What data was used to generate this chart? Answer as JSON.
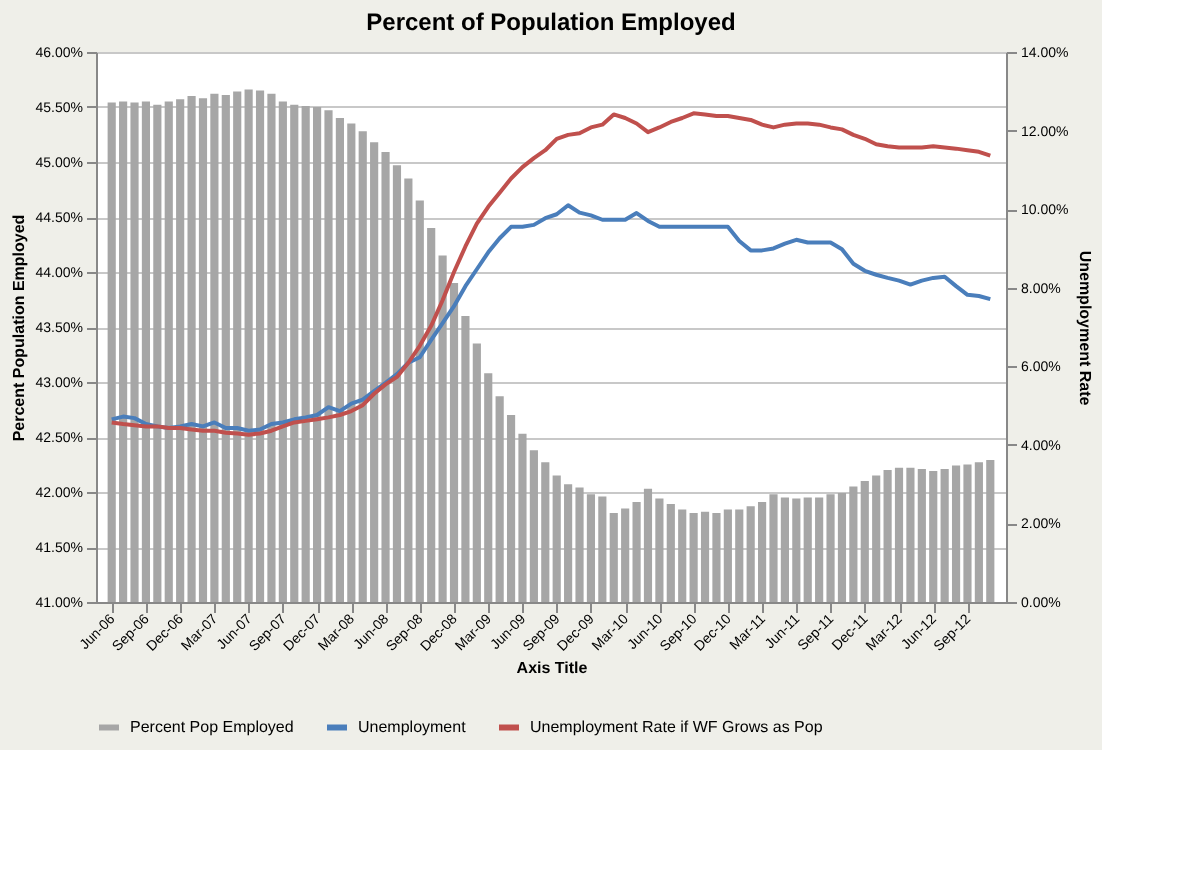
{
  "chart_data": {
    "type": "bar",
    "title": "Percent of Population Employed",
    "xlabel": "Axis Title",
    "ylabel": "Percent Population Employed",
    "y2label": "Unemployment Rate",
    "categories": [
      "Jun-06",
      null,
      null,
      "Sep-06",
      null,
      null,
      "Dec-06",
      null,
      null,
      "Mar-07",
      null,
      null,
      "Jun-07",
      null,
      null,
      "Sep-07",
      null,
      null,
      "Dec-07",
      null,
      null,
      "Mar-08",
      null,
      null,
      "Jun-08",
      null,
      null,
      "Sep-08",
      null,
      null,
      "Dec-08",
      null,
      null,
      "Mar-09",
      null,
      null,
      "Jun-09",
      null,
      null,
      "Sep-09",
      null,
      null,
      "Dec-09",
      null,
      null,
      "Mar-10",
      null,
      null,
      "Jun-10",
      null,
      null,
      "Sep-10",
      null,
      null,
      "Dec-10",
      null,
      null,
      "Mar-11",
      null,
      null,
      "Jun-11",
      null,
      null,
      "Sep-11",
      null,
      null,
      "Dec-11",
      null,
      null,
      "Mar-12",
      null,
      null,
      "Jun-12",
      null,
      null,
      "Sep-12",
      null,
      null
    ],
    "series": [
      {
        "name": "Percent Pop Employed",
        "color": "#a6a6a6",
        "values": [
          45.54,
          45.55,
          45.54,
          45.55,
          45.52,
          45.55,
          45.57,
          45.6,
          45.58,
          45.62,
          45.61,
          45.64,
          45.66,
          45.65,
          45.62,
          45.55,
          45.52,
          45.51,
          45.5,
          45.47,
          45.4,
          45.35,
          45.28,
          45.18,
          45.09,
          44.97,
          44.85,
          44.65,
          44.4,
          44.15,
          43.9,
          43.6,
          43.35,
          43.08,
          42.87,
          42.7,
          42.53,
          42.38,
          42.27,
          42.15,
          42.07,
          42.04,
          41.98,
          41.96,
          41.81,
          41.85,
          41.91,
          42.03,
          41.94,
          41.89,
          41.84,
          41.81,
          41.82,
          41.81,
          41.84,
          41.84,
          41.87,
          41.91,
          41.98,
          41.95,
          41.94,
          41.95,
          41.95,
          41.98,
          41.99,
          42.05,
          42.1,
          42.15,
          42.2,
          42.22,
          42.22,
          42.21,
          42.19,
          42.21,
          42.24,
          42.25,
          42.27,
          42.29
        ]
      },
      {
        "name": "Unemployment",
        "type": "line",
        "axis": "y2",
        "color": "#4a7ebb",
        "values": [
          4.65,
          4.72,
          4.68,
          4.53,
          4.47,
          4.43,
          4.47,
          4.53,
          4.47,
          4.57,
          4.43,
          4.43,
          4.36,
          4.39,
          4.53,
          4.57,
          4.65,
          4.7,
          4.76,
          4.96,
          4.86,
          5.05,
          5.15,
          5.37,
          5.58,
          5.8,
          6.09,
          6.23,
          6.67,
          7.1,
          7.53,
          8.04,
          8.47,
          8.9,
          9.26,
          9.55,
          9.55,
          9.6,
          9.77,
          9.87,
          10.1,
          9.91,
          9.84,
          9.73,
          9.73,
          9.73,
          9.9,
          9.7,
          9.55,
          9.55,
          9.55,
          9.55,
          9.55,
          9.55,
          9.55,
          9.19,
          8.95,
          8.95,
          9.0,
          9.12,
          9.22,
          9.15,
          9.15,
          9.15,
          8.98,
          8.61,
          8.43,
          8.33,
          8.25,
          8.18,
          8.08,
          8.18,
          8.25,
          8.28,
          8.04,
          7.82,
          7.79,
          7.71
        ]
      },
      {
        "name": "Unemployment Rate if WF Grows as Pop",
        "type": "line",
        "axis": "y2",
        "color": "#c0504d",
        "values": [
          4.57,
          4.53,
          4.5,
          4.47,
          4.47,
          4.43,
          4.43,
          4.39,
          4.36,
          4.36,
          4.31,
          4.29,
          4.26,
          4.29,
          4.36,
          4.47,
          4.57,
          4.61,
          4.65,
          4.7,
          4.76,
          4.86,
          5.01,
          5.3,
          5.54,
          5.73,
          6.09,
          6.52,
          7.03,
          7.68,
          8.4,
          9.05,
          9.63,
          10.06,
          10.42,
          10.78,
          11.07,
          11.3,
          11.5,
          11.79,
          11.89,
          11.93,
          12.08,
          12.15,
          12.41,
          12.32,
          12.18,
          11.96,
          12.08,
          12.22,
          12.32,
          12.44,
          12.41,
          12.37,
          12.37,
          12.32,
          12.27,
          12.15,
          12.08,
          12.15,
          12.18,
          12.18,
          12.15,
          12.08,
          12.03,
          11.89,
          11.79,
          11.65,
          11.6,
          11.57,
          11.57,
          11.57,
          11.6,
          11.57,
          11.54,
          11.5,
          11.46,
          11.36
        ]
      }
    ],
    "ylim": [
      41,
      46
    ],
    "yticks": [
      {
        "value": 41,
        "label": "41.00%"
      },
      {
        "value": 41.5,
        "label": "41.50%"
      },
      {
        "value": 42,
        "label": "42.00%"
      },
      {
        "value": 42.5,
        "label": "42.50%"
      },
      {
        "value": 43,
        "label": "43.00%"
      },
      {
        "value": 43.5,
        "label": "43.50%"
      },
      {
        "value": 44,
        "label": "44.00%"
      },
      {
        "value": 44.5,
        "label": "44.50%"
      },
      {
        "value": 45,
        "label": "45.00%"
      },
      {
        "value": 45.5,
        "label": "45.50%"
      },
      {
        "value": 46,
        "label": "46.00%"
      }
    ],
    "y2lim": [
      0,
      14
    ],
    "y2ticks": [
      {
        "value": 0,
        "label": "0.00%"
      },
      {
        "value": 2,
        "label": "2.00%"
      },
      {
        "value": 4,
        "label": "4.00%"
      },
      {
        "value": 6,
        "label": "6.00%"
      },
      {
        "value": 8,
        "label": "8.00%"
      },
      {
        "value": 10,
        "label": "10.00%"
      },
      {
        "value": 12,
        "label": "12.00%"
      },
      {
        "value": 14,
        "label": "14.00%"
      }
    ],
    "grid": "y",
    "legend": "bottom",
    "line_style": "solid",
    "marker": "none"
  }
}
